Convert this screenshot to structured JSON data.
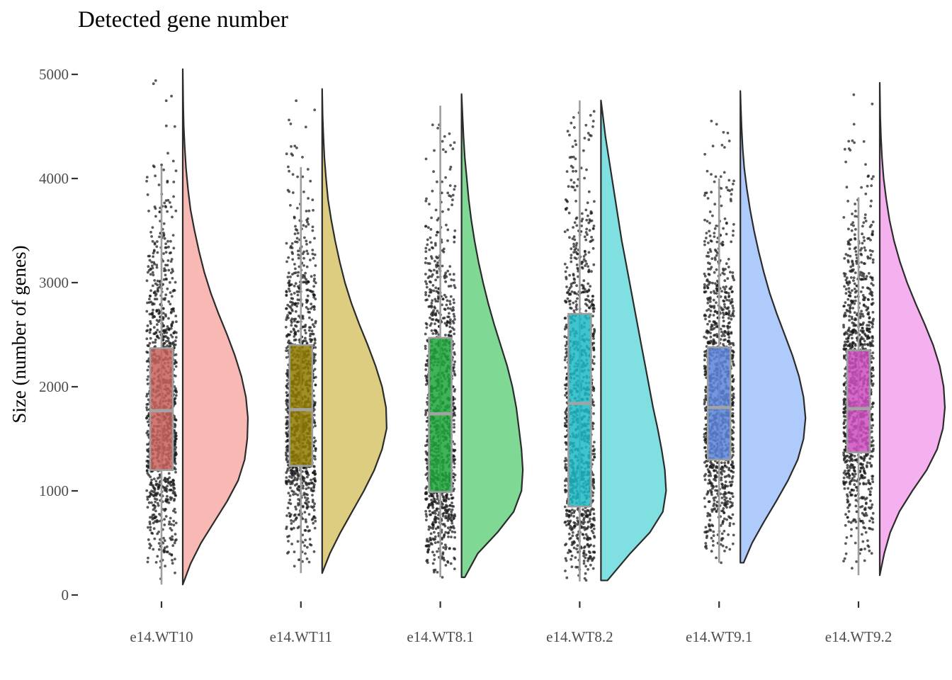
{
  "chart_data": {
    "type": "raincloud",
    "title": "Detected gene number",
    "xlabel": "",
    "ylabel": "Size (number of genes)",
    "ylim": [
      0,
      5000
    ],
    "yticks": [
      0,
      1000,
      2000,
      3000,
      4000,
      5000
    ],
    "grid": false,
    "legend": "none",
    "categories": [
      "e14.WT10",
      "e14.WT11",
      "e14.WT8.1",
      "e14.WT8.2",
      "e14.WT9.1",
      "e14.WT9.2"
    ],
    "series": [
      {
        "category": "e14.WT10",
        "box_color": "#c8625c",
        "density_color": "#f8b9b4",
        "min": 100,
        "max": 5050,
        "whisker_low": 100,
        "whisker_high": 4120,
        "q1": 1200,
        "median": 1770,
        "q3": 2370,
        "density": [
          [
            100,
            0
          ],
          [
            300,
            0.12
          ],
          [
            500,
            0.28
          ],
          [
            700,
            0.48
          ],
          [
            900,
            0.68
          ],
          [
            1100,
            0.85
          ],
          [
            1300,
            0.95
          ],
          [
            1500,
            0.99
          ],
          [
            1700,
            1.0
          ],
          [
            1900,
            0.97
          ],
          [
            2100,
            0.9
          ],
          [
            2300,
            0.8
          ],
          [
            2500,
            0.68
          ],
          [
            2700,
            0.55
          ],
          [
            2900,
            0.43
          ],
          [
            3100,
            0.33
          ],
          [
            3300,
            0.25
          ],
          [
            3500,
            0.18
          ],
          [
            3700,
            0.12
          ],
          [
            3900,
            0.08
          ],
          [
            4100,
            0.05
          ],
          [
            4300,
            0.03
          ],
          [
            4500,
            0.015
          ],
          [
            4700,
            0.008
          ],
          [
            4900,
            0.003
          ],
          [
            5050,
            0
          ]
        ]
      },
      {
        "category": "e14.WT11",
        "box_color": "#8f7a00",
        "density_color": "#dccd80",
        "min": 210,
        "max": 4860,
        "whisker_low": 210,
        "whisker_high": 4110,
        "q1": 1240,
        "median": 1780,
        "q3": 2400,
        "density": [
          [
            210,
            0
          ],
          [
            400,
            0.12
          ],
          [
            600,
            0.28
          ],
          [
            800,
            0.46
          ],
          [
            1000,
            0.64
          ],
          [
            1200,
            0.8
          ],
          [
            1400,
            0.92
          ],
          [
            1600,
            0.99
          ],
          [
            1800,
            0.98
          ],
          [
            2000,
            0.92
          ],
          [
            2200,
            0.82
          ],
          [
            2400,
            0.7
          ],
          [
            2600,
            0.57
          ],
          [
            2800,
            0.45
          ],
          [
            3000,
            0.35
          ],
          [
            3200,
            0.27
          ],
          [
            3400,
            0.2
          ],
          [
            3600,
            0.14
          ],
          [
            3800,
            0.09
          ],
          [
            4000,
            0.06
          ],
          [
            4200,
            0.035
          ],
          [
            4400,
            0.02
          ],
          [
            4600,
            0.008
          ],
          [
            4860,
            0
          ]
        ]
      },
      {
        "category": "e14.WT8.1",
        "box_color": "#1ea43a",
        "density_color": "#80d895",
        "min": 170,
        "max": 4810,
        "whisker_low": 170,
        "whisker_high": 4700,
        "q1": 990,
        "median": 1740,
        "q3": 2470,
        "density": [
          [
            170,
            0.05
          ],
          [
            400,
            0.25
          ],
          [
            600,
            0.55
          ],
          [
            800,
            0.8
          ],
          [
            1000,
            0.92
          ],
          [
            1200,
            0.94
          ],
          [
            1400,
            0.92
          ],
          [
            1600,
            0.88
          ],
          [
            1800,
            0.84
          ],
          [
            2000,
            0.78
          ],
          [
            2200,
            0.7
          ],
          [
            2400,
            0.6
          ],
          [
            2600,
            0.5
          ],
          [
            2800,
            0.41
          ],
          [
            3000,
            0.33
          ],
          [
            3200,
            0.26
          ],
          [
            3400,
            0.2
          ],
          [
            3600,
            0.15
          ],
          [
            3800,
            0.11
          ],
          [
            4000,
            0.08
          ],
          [
            4200,
            0.05
          ],
          [
            4400,
            0.03
          ],
          [
            4600,
            0.015
          ],
          [
            4810,
            0
          ]
        ]
      },
      {
        "category": "e14.WT8.2",
        "box_color": "#1dbac6",
        "density_color": "#7fdfe1",
        "min": 130,
        "max": 4750,
        "whisker_low": 130,
        "whisker_high": 4750,
        "q1": 850,
        "median": 1840,
        "q3": 2700,
        "density": [
          [
            140,
            0.1
          ],
          [
            400,
            0.45
          ],
          [
            600,
            0.75
          ],
          [
            800,
            0.95
          ],
          [
            1000,
            1.0
          ],
          [
            1200,
            0.98
          ],
          [
            1400,
            0.93
          ],
          [
            1600,
            0.87
          ],
          [
            1800,
            0.8
          ],
          [
            2000,
            0.74
          ],
          [
            2200,
            0.68
          ],
          [
            2400,
            0.62
          ],
          [
            2600,
            0.56
          ],
          [
            2800,
            0.5
          ],
          [
            3000,
            0.44
          ],
          [
            3200,
            0.38
          ],
          [
            3400,
            0.32
          ],
          [
            3600,
            0.27
          ],
          [
            3800,
            0.22
          ],
          [
            4000,
            0.17
          ],
          [
            4200,
            0.12
          ],
          [
            4400,
            0.07
          ],
          [
            4600,
            0.03
          ],
          [
            4750,
            0
          ]
        ]
      },
      {
        "category": "e14.WT9.1",
        "box_color": "#5b84d8",
        "density_color": "#aecbfb",
        "min": 310,
        "max": 4840,
        "whisker_low": 310,
        "whisker_high": 4000,
        "q1": 1300,
        "median": 1800,
        "q3": 2380,
        "density": [
          [
            310,
            0.05
          ],
          [
            500,
            0.18
          ],
          [
            700,
            0.36
          ],
          [
            900,
            0.55
          ],
          [
            1100,
            0.73
          ],
          [
            1300,
            0.88
          ],
          [
            1500,
            0.97
          ],
          [
            1700,
            1.0
          ],
          [
            1900,
            0.97
          ],
          [
            2100,
            0.9
          ],
          [
            2300,
            0.8
          ],
          [
            2500,
            0.68
          ],
          [
            2700,
            0.56
          ],
          [
            2900,
            0.45
          ],
          [
            3100,
            0.36
          ],
          [
            3300,
            0.28
          ],
          [
            3500,
            0.21
          ],
          [
            3700,
            0.15
          ],
          [
            3900,
            0.1
          ],
          [
            4100,
            0.06
          ],
          [
            4300,
            0.035
          ],
          [
            4500,
            0.018
          ],
          [
            4700,
            0.007
          ],
          [
            4840,
            0
          ]
        ]
      },
      {
        "category": "e14.WT9.2",
        "box_color": "#cc4fc1",
        "density_color": "#f5b0ef",
        "min": 190,
        "max": 4920,
        "whisker_low": 190,
        "whisker_high": 3820,
        "q1": 1370,
        "median": 1790,
        "q3": 2350,
        "density": [
          [
            190,
            0
          ],
          [
            400,
            0.07
          ],
          [
            600,
            0.16
          ],
          [
            800,
            0.3
          ],
          [
            1000,
            0.5
          ],
          [
            1200,
            0.72
          ],
          [
            1400,
            0.88
          ],
          [
            1600,
            0.97
          ],
          [
            1800,
            1.0
          ],
          [
            2000,
            0.98
          ],
          [
            2200,
            0.92
          ],
          [
            2400,
            0.82
          ],
          [
            2600,
            0.69
          ],
          [
            2800,
            0.55
          ],
          [
            3000,
            0.42
          ],
          [
            3200,
            0.31
          ],
          [
            3400,
            0.22
          ],
          [
            3600,
            0.15
          ],
          [
            3800,
            0.1
          ],
          [
            4000,
            0.06
          ],
          [
            4200,
            0.035
          ],
          [
            4400,
            0.018
          ],
          [
            4600,
            0.008
          ],
          [
            4920,
            0
          ]
        ]
      }
    ]
  }
}
